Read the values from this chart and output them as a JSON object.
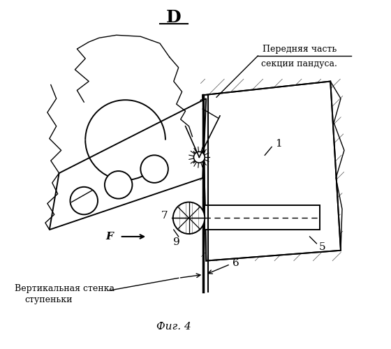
{
  "title": "D",
  "caption": "Фиг. 4",
  "bg_color": "#ffffff",
  "fig_width": 5.6,
  "fig_height": 5.0,
  "dpi": 100,
  "top_label_line1": "Передняя часть",
  "top_label_line2": "секции пандуса.",
  "bottom_label_line1": "Вертикальная стенка",
  "bottom_label_line2": "ступеньки"
}
